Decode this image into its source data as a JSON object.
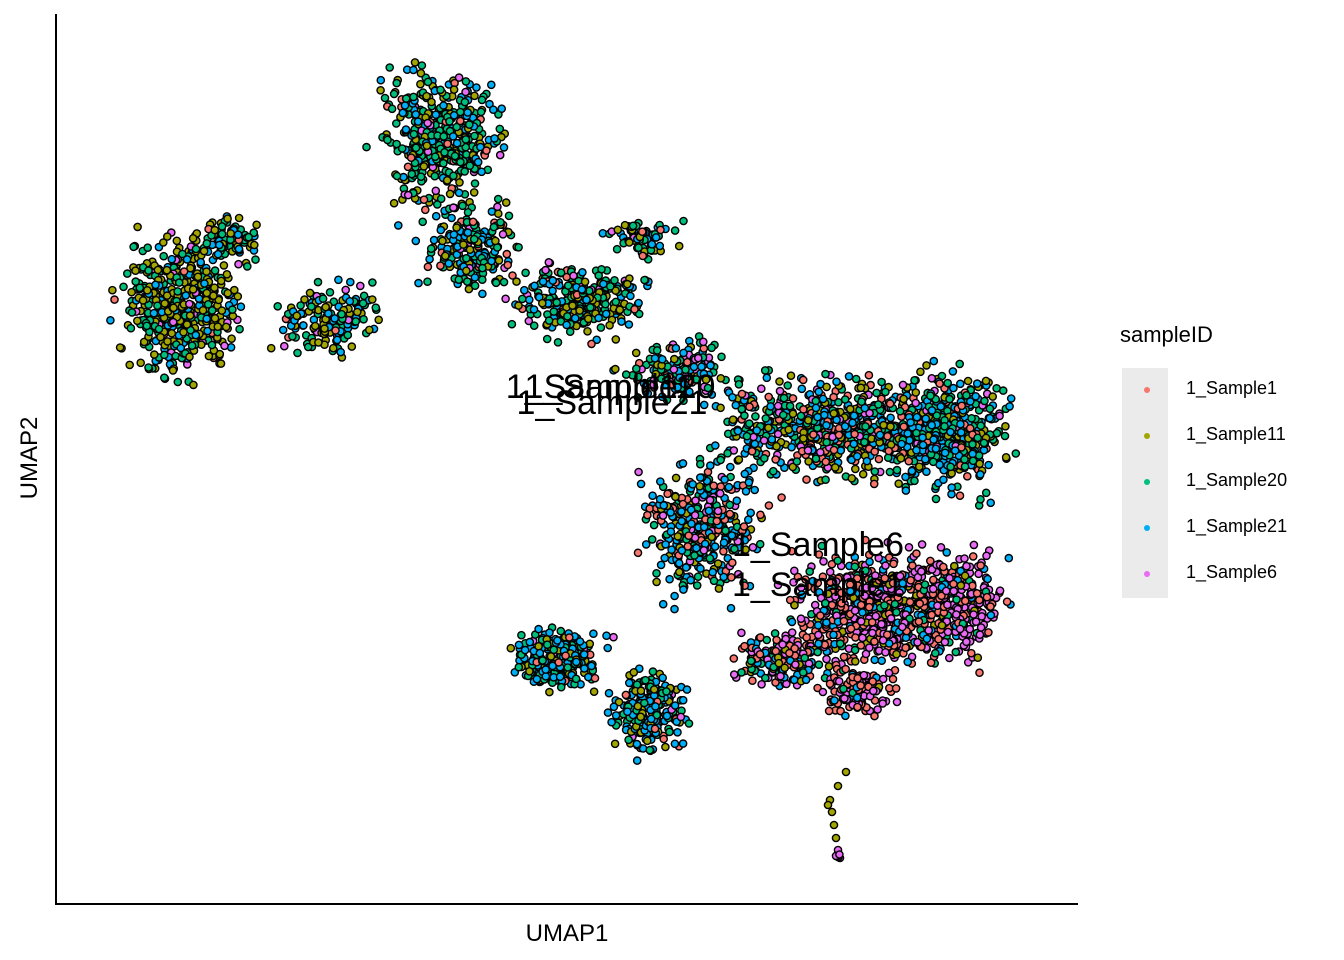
{
  "chart_data": {
    "type": "scatter",
    "title": "",
    "xlabel": "UMAP1",
    "ylabel": "UMAP2",
    "x_ticks_shown": false,
    "y_ticks_shown": false,
    "grid": false,
    "legend": {
      "title": "sampleID",
      "placement": "right",
      "entries": [
        {
          "name": "1_Sample1",
          "color": "#F8766D"
        },
        {
          "name": "1_Sample11",
          "color": "#A3A500"
        },
        {
          "name": "1_Sample20",
          "color": "#00BF7D"
        },
        {
          "name": "1_Sample21",
          "color": "#00B0F6"
        },
        {
          "name": "1_Sample6",
          "color": "#E76BF3"
        }
      ]
    },
    "annotations": [
      "1_Sample20",
      "1_Sample11",
      "1_Sample21",
      "1_Sample6",
      "1_Sample1"
    ],
    "point_outline_color": "#000000"
  }
}
